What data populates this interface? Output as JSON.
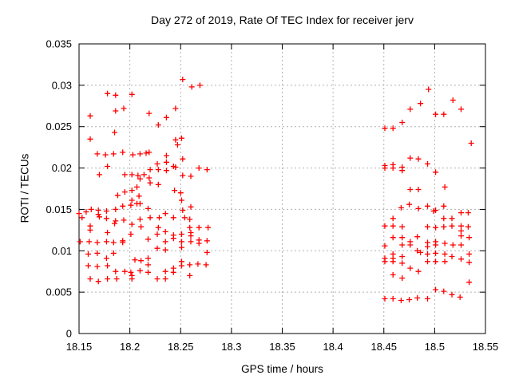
{
  "page": {
    "background": "#ffffff"
  },
  "chart_data": {
    "type": "scatter",
    "title": "Day 272 of 2019, Rate Of TEC Index for receiver jerv",
    "xlabel": "GPS time / hours",
    "ylabel": "ROTI / TECUs",
    "xlim": [
      18.15,
      18.55
    ],
    "ylim": [
      0,
      0.035
    ],
    "xticks": [
      18.15,
      18.2,
      18.25,
      18.3,
      18.35,
      18.4,
      18.45,
      18.5,
      18.55
    ],
    "xtick_labels": [
      "18.15",
      "18.2",
      "18.25",
      "18.3",
      "18.35",
      "18.4",
      "18.45",
      "18.5",
      "18.55"
    ],
    "yticks": [
      0,
      0.005,
      0.01,
      0.015,
      0.02,
      0.025,
      0.03,
      0.035
    ],
    "ytick_labels": [
      "0",
      "0.005",
      "0.01",
      "0.015",
      "0.02",
      "0.025",
      "0.03",
      "0.035"
    ],
    "grid": true,
    "legend": "none",
    "marker": {
      "shape": "plus",
      "color": "#ff0000",
      "size": 7
    },
    "series": [
      {
        "name": "ROTI",
        "points": [
          [
            18.178,
            0.029
          ],
          [
            18.186,
            0.0288
          ],
          [
            18.202,
            0.0289
          ],
          [
            18.186,
            0.0269
          ],
          [
            18.194,
            0.0272
          ],
          [
            18.161,
            0.0263
          ],
          [
            18.185,
            0.0243
          ],
          [
            18.161,
            0.0235
          ],
          [
            18.219,
            0.0266
          ],
          [
            18.252,
            0.0307
          ],
          [
            18.261,
            0.0298
          ],
          [
            18.269,
            0.03
          ],
          [
            18.245,
            0.0272
          ],
          [
            18.236,
            0.0261
          ],
          [
            18.228,
            0.0252
          ],
          [
            18.251,
            0.0236
          ],
          [
            18.245,
            0.0234
          ],
          [
            18.168,
            0.0217
          ],
          [
            18.176,
            0.0216
          ],
          [
            18.184,
            0.0217
          ],
          [
            18.193,
            0.0219
          ],
          [
            18.203,
            0.0216
          ],
          [
            18.21,
            0.0217
          ],
          [
            18.216,
            0.0218
          ],
          [
            18.178,
            0.0202
          ],
          [
            18.17,
            0.0192
          ],
          [
            18.195,
            0.0192
          ],
          [
            18.202,
            0.0192
          ],
          [
            18.208,
            0.0191
          ],
          [
            18.214,
            0.0192
          ],
          [
            18.21,
            0.0187
          ],
          [
            18.188,
            0.0167
          ],
          [
            18.195,
            0.0171
          ],
          [
            18.202,
            0.0173
          ],
          [
            18.207,
            0.0177
          ],
          [
            18.209,
            0.0166
          ],
          [
            18.202,
            0.0161
          ],
          [
            18.21,
            0.0157
          ],
          [
            18.15,
            0.0145
          ],
          [
            18.157,
            0.0147
          ],
          [
            18.162,
            0.015
          ],
          [
            18.169,
            0.0149
          ],
          [
            18.169,
            0.0144
          ],
          [
            18.177,
            0.0148
          ],
          [
            18.186,
            0.015
          ],
          [
            18.193,
            0.0154
          ],
          [
            18.201,
            0.0155
          ],
          [
            18.207,
            0.0157
          ],
          [
            18.247,
            0.0228
          ],
          [
            18.219,
            0.0219
          ],
          [
            18.236,
            0.0215
          ],
          [
            18.236,
            0.0207
          ],
          [
            18.227,
            0.0205
          ],
          [
            18.243,
            0.0202
          ],
          [
            18.245,
            0.0201
          ],
          [
            18.252,
            0.0211
          ],
          [
            18.22,
            0.0198
          ],
          [
            18.228,
            0.0198
          ],
          [
            18.236,
            0.0197
          ],
          [
            18.268,
            0.02
          ],
          [
            18.276,
            0.0198
          ],
          [
            18.252,
            0.0191
          ],
          [
            18.26,
            0.019
          ],
          [
            18.219,
            0.0188
          ],
          [
            18.22,
            0.0182
          ],
          [
            18.228,
            0.018
          ],
          [
            18.244,
            0.0173
          ],
          [
            18.25,
            0.017
          ],
          [
            18.251,
            0.0161
          ],
          [
            18.26,
            0.0153
          ],
          [
            18.218,
            0.0151
          ],
          [
            18.252,
            0.0149
          ],
          [
            18.235,
            0.0145
          ],
          [
            18.254,
            0.014
          ],
          [
            18.153,
            0.014
          ],
          [
            18.17,
            0.0141
          ],
          [
            18.177,
            0.0139
          ],
          [
            18.186,
            0.0136
          ],
          [
            18.194,
            0.0137
          ],
          [
            18.21,
            0.0138
          ],
          [
            18.202,
            0.0132
          ],
          [
            18.211,
            0.0129
          ],
          [
            18.161,
            0.013
          ],
          [
            18.161,
            0.0125
          ],
          [
            18.178,
            0.0122
          ],
          [
            18.185,
            0.0133
          ],
          [
            18.201,
            0.012
          ],
          [
            18.16,
            0.0111
          ],
          [
            18.168,
            0.011
          ],
          [
            18.177,
            0.0111
          ],
          [
            18.184,
            0.011
          ],
          [
            18.193,
            0.0112
          ],
          [
            18.193,
            0.011
          ],
          [
            18.151,
            0.0111
          ],
          [
            18.159,
            0.0096
          ],
          [
            18.168,
            0.0097
          ],
          [
            18.184,
            0.0097
          ],
          [
            18.177,
            0.0091
          ],
          [
            18.159,
            0.0082
          ],
          [
            18.168,
            0.0081
          ],
          [
            18.178,
            0.0082
          ],
          [
            18.186,
            0.0075
          ],
          [
            18.195,
            0.0075
          ],
          [
            18.201,
            0.0074
          ],
          [
            18.21,
            0.0076
          ],
          [
            18.205,
            0.0089
          ],
          [
            18.211,
            0.0088
          ],
          [
            18.218,
            0.0114
          ],
          [
            18.161,
            0.0066
          ],
          [
            18.169,
            0.0063
          ],
          [
            18.178,
            0.0066
          ],
          [
            18.187,
            0.0066
          ],
          [
            18.202,
            0.007
          ],
          [
            18.202,
            0.0066
          ],
          [
            18.22,
            0.014
          ],
          [
            18.229,
            0.014
          ],
          [
            18.243,
            0.014
          ],
          [
            18.259,
            0.0138
          ],
          [
            18.228,
            0.0128
          ],
          [
            18.259,
            0.0128
          ],
          [
            18.268,
            0.0128
          ],
          [
            18.277,
            0.0128
          ],
          [
            18.235,
            0.0123
          ],
          [
            18.227,
            0.012
          ],
          [
            18.243,
            0.0119
          ],
          [
            18.243,
            0.0115
          ],
          [
            18.251,
            0.012
          ],
          [
            18.26,
            0.0122
          ],
          [
            18.26,
            0.0118
          ],
          [
            18.268,
            0.0113
          ],
          [
            18.276,
            0.0112
          ],
          [
            18.235,
            0.0111
          ],
          [
            18.251,
            0.0111
          ],
          [
            18.26,
            0.0111
          ],
          [
            18.227,
            0.0103
          ],
          [
            18.235,
            0.0101
          ],
          [
            18.251,
            0.0104
          ],
          [
            18.268,
            0.0109
          ],
          [
            18.276,
            0.0098
          ],
          [
            18.218,
            0.0091
          ],
          [
            18.218,
            0.0083
          ],
          [
            18.218,
            0.0074
          ],
          [
            18.251,
            0.0087
          ],
          [
            18.251,
            0.0082
          ],
          [
            18.259,
            0.0083
          ],
          [
            18.267,
            0.0084
          ],
          [
            18.275,
            0.0083
          ],
          [
            18.243,
            0.0079
          ],
          [
            18.243,
            0.0074
          ],
          [
            18.235,
            0.0075
          ],
          [
            18.259,
            0.007
          ],
          [
            18.227,
            0.0066
          ],
          [
            18.235,
            0.0066
          ],
          [
            18.451,
            0.0248
          ],
          [
            18.459,
            0.0248
          ],
          [
            18.468,
            0.0255
          ],
          [
            18.476,
            0.0271
          ],
          [
            18.486,
            0.0278
          ],
          [
            18.494,
            0.0295
          ],
          [
            18.518,
            0.0282
          ],
          [
            18.526,
            0.0271
          ],
          [
            18.501,
            0.0265
          ],
          [
            18.509,
            0.0265
          ],
          [
            18.536,
            0.023
          ],
          [
            18.476,
            0.0212
          ],
          [
            18.484,
            0.0211
          ],
          [
            18.451,
            0.0203
          ],
          [
            18.451,
            0.02
          ],
          [
            18.459,
            0.0204
          ],
          [
            18.459,
            0.02
          ],
          [
            18.468,
            0.0201
          ],
          [
            18.468,
            0.0197
          ],
          [
            18.476,
            0.0174
          ],
          [
            18.484,
            0.0174
          ],
          [
            18.467,
            0.0152
          ],
          [
            18.475,
            0.0156
          ],
          [
            18.484,
            0.0151
          ],
          [
            18.459,
            0.0139
          ],
          [
            18.451,
            0.013
          ],
          [
            18.459,
            0.013
          ],
          [
            18.468,
            0.0129
          ],
          [
            18.493,
            0.0205
          ],
          [
            18.501,
            0.0195
          ],
          [
            18.51,
            0.0177
          ],
          [
            18.493,
            0.0154
          ],
          [
            18.501,
            0.0149
          ],
          [
            18.499,
            0.0148
          ],
          [
            18.509,
            0.0154
          ],
          [
            18.526,
            0.0146
          ],
          [
            18.533,
            0.0146
          ],
          [
            18.509,
            0.0139
          ],
          [
            18.517,
            0.0139
          ],
          [
            18.493,
            0.0129
          ],
          [
            18.501,
            0.0128
          ],
          [
            18.509,
            0.0129
          ],
          [
            18.517,
            0.013
          ],
          [
            18.526,
            0.013
          ],
          [
            18.533,
            0.0129
          ],
          [
            18.526,
            0.0124
          ],
          [
            18.459,
            0.0116
          ],
          [
            18.468,
            0.0116
          ],
          [
            18.483,
            0.0117
          ],
          [
            18.451,
            0.0106
          ],
          [
            18.468,
            0.0107
          ],
          [
            18.476,
            0.0111
          ],
          [
            18.476,
            0.0107
          ],
          [
            18.483,
            0.01
          ],
          [
            18.486,
            0.0098
          ],
          [
            18.451,
            0.0091
          ],
          [
            18.451,
            0.0087
          ],
          [
            18.459,
            0.0096
          ],
          [
            18.459,
            0.0091
          ],
          [
            18.459,
            0.0087
          ],
          [
            18.468,
            0.0093
          ],
          [
            18.468,
            0.0085
          ],
          [
            18.476,
            0.0079
          ],
          [
            18.484,
            0.0075
          ],
          [
            18.459,
            0.0071
          ],
          [
            18.468,
            0.0067
          ],
          [
            18.451,
            0.0042
          ],
          [
            18.459,
            0.0042
          ],
          [
            18.467,
            0.004
          ],
          [
            18.475,
            0.0041
          ],
          [
            18.483,
            0.0043
          ],
          [
            18.493,
            0.011
          ],
          [
            18.493,
            0.0105
          ],
          [
            18.501,
            0.0111
          ],
          [
            18.501,
            0.0107
          ],
          [
            18.51,
            0.0109
          ],
          [
            18.518,
            0.0107
          ],
          [
            18.526,
            0.0107
          ],
          [
            18.493,
            0.0096
          ],
          [
            18.501,
            0.0097
          ],
          [
            18.51,
            0.0096
          ],
          [
            18.517,
            0.0093
          ],
          [
            18.526,
            0.009
          ],
          [
            18.534,
            0.0096
          ],
          [
            18.493,
            0.0087
          ],
          [
            18.501,
            0.0087
          ],
          [
            18.51,
            0.0087
          ],
          [
            18.534,
            0.0086
          ],
          [
            18.534,
            0.0062
          ],
          [
            18.501,
            0.0053
          ],
          [
            18.509,
            0.0051
          ],
          [
            18.517,
            0.0047
          ],
          [
            18.525,
            0.0044
          ],
          [
            18.493,
            0.0042
          ],
          [
            18.526,
            0.0118
          ],
          [
            18.534,
            0.0116
          ]
        ]
      }
    ]
  }
}
